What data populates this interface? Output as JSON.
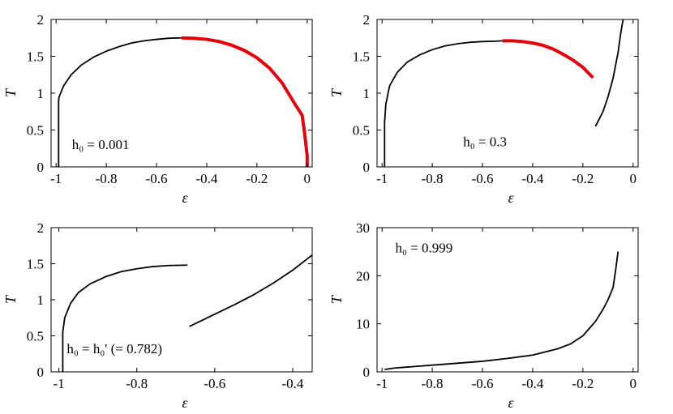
{
  "chart_data": [
    {
      "type": "line",
      "xlabel": "ε",
      "ylabel": "T",
      "xlim": [
        -1.02,
        0.02
      ],
      "ylim": [
        0,
        2
      ],
      "xticks": [
        -1,
        -0.8,
        -0.6,
        -0.4,
        -0.2,
        0
      ],
      "xtick_labels": [
        "-1",
        "-0.8",
        "-0.6",
        "-0.4",
        "-0.2",
        "0"
      ],
      "yticks": [
        0,
        0.5,
        1,
        1.5,
        2
      ],
      "ytick_labels": [
        "0",
        "0.5",
        "1",
        "1.5",
        "2"
      ],
      "annotation": "h₀ = 0.001",
      "series": [
        {
          "color": "#000000",
          "width": 1.8,
          "x": [
            -0.99,
            -0.99,
            -0.988,
            -0.97,
            -0.94,
            -0.9,
            -0.85,
            -0.8,
            -0.75,
            -0.7,
            -0.65,
            -0.6,
            -0.55,
            -0.5
          ],
          "y": [
            0.0,
            0.9,
            0.95,
            1.1,
            1.25,
            1.38,
            1.49,
            1.57,
            1.63,
            1.68,
            1.71,
            1.73,
            1.745,
            1.75
          ]
        },
        {
          "color": "#e8000b",
          "width": 4,
          "x": [
            -0.5,
            -0.45,
            -0.4,
            -0.35,
            -0.3,
            -0.25,
            -0.2,
            -0.15,
            -0.1,
            -0.05,
            -0.02,
            -0.01,
            0.0,
            0.0
          ],
          "y": [
            1.75,
            1.745,
            1.73,
            1.7,
            1.65,
            1.58,
            1.48,
            1.34,
            1.14,
            0.86,
            0.7,
            0.45,
            0.15,
            0.0
          ]
        }
      ]
    },
    {
      "type": "line",
      "xlabel": "ε",
      "ylabel": "T",
      "xlim": [
        -1.02,
        0.02
      ],
      "ylim": [
        0,
        2
      ],
      "xticks": [
        -1,
        -0.8,
        -0.6,
        -0.4,
        -0.2,
        0
      ],
      "xtick_labels": [
        "-1",
        "-0.8",
        "-0.6",
        "-0.4",
        "-0.2",
        "0"
      ],
      "yticks": [
        0,
        0.5,
        1,
        1.5,
        2
      ],
      "ytick_labels": [
        "0",
        "0.5",
        "1",
        "1.5",
        "2"
      ],
      "annotation": "h₀ = 0.3",
      "series": [
        {
          "color": "#000000",
          "width": 1.8,
          "x": [
            -0.99,
            -0.99,
            -0.985,
            -0.97,
            -0.94,
            -0.9,
            -0.85,
            -0.8,
            -0.75,
            -0.7,
            -0.65,
            -0.6,
            -0.55,
            -0.52
          ],
          "y": [
            0.0,
            0.6,
            0.85,
            1.1,
            1.28,
            1.42,
            1.52,
            1.59,
            1.64,
            1.67,
            1.69,
            1.7,
            1.705,
            1.71
          ]
        },
        {
          "color": "#e8000b",
          "width": 4,
          "x": [
            -0.52,
            -0.48,
            -0.44,
            -0.4,
            -0.36,
            -0.32,
            -0.28,
            -0.24,
            -0.2,
            -0.16
          ],
          "y": [
            1.71,
            1.71,
            1.7,
            1.68,
            1.65,
            1.6,
            1.53,
            1.45,
            1.35,
            1.21
          ]
        },
        {
          "color": "#000000",
          "width": 1.8,
          "x": [
            -0.15,
            -0.12,
            -0.1,
            -0.08,
            -0.06,
            -0.05,
            -0.04
          ],
          "y": [
            0.55,
            0.75,
            0.95,
            1.2,
            1.55,
            1.8,
            2.0
          ]
        }
      ]
    },
    {
      "type": "line",
      "xlabel": "ε",
      "ylabel": "T",
      "xlim": [
        -1.02,
        -0.35
      ],
      "ylim": [
        0,
        2
      ],
      "xticks": [
        -1,
        -0.8,
        -0.6,
        -0.4
      ],
      "xtick_labels": [
        "-1",
        "-0.8",
        "-0.6",
        "-0.4"
      ],
      "yticks": [
        0,
        0.5,
        1,
        1.5,
        2
      ],
      "ytick_labels": [
        "0",
        "0.5",
        "1",
        "1.5",
        "2"
      ],
      "annotation": "h₀ = h₀' (= 0.782)",
      "series": [
        {
          "color": "#000000",
          "width": 1.8,
          "x": [
            -0.99,
            -0.99,
            -0.985,
            -0.97,
            -0.95,
            -0.92,
            -0.88,
            -0.84,
            -0.8,
            -0.76,
            -0.72,
            -0.67
          ],
          "y": [
            0.0,
            0.55,
            0.75,
            0.95,
            1.1,
            1.22,
            1.32,
            1.39,
            1.43,
            1.46,
            1.475,
            1.48
          ]
        },
        {
          "color": "#000000",
          "width": 1.8,
          "x": [
            -0.665,
            -0.6,
            -0.55,
            -0.5,
            -0.45,
            -0.4,
            -0.35
          ],
          "y": [
            0.63,
            0.8,
            0.93,
            1.07,
            1.23,
            1.41,
            1.62
          ]
        }
      ]
    },
    {
      "type": "line",
      "xlabel": "ε",
      "ylabel": "T",
      "xlim": [
        -1.02,
        0.02
      ],
      "ylim": [
        0,
        30
      ],
      "xticks": [
        -1,
        -0.8,
        -0.6,
        -0.4,
        -0.2,
        0
      ],
      "xtick_labels": [
        "-1",
        "-0.8",
        "-0.6",
        "-0.4",
        "-0.2",
        "0"
      ],
      "yticks": [
        0,
        10,
        20,
        30
      ],
      "ytick_labels": [
        "0",
        "10",
        "20",
        "30"
      ],
      "annotation": "h₀ = 0.999",
      "series": [
        {
          "color": "#000000",
          "width": 1.8,
          "x": [
            -0.99,
            -0.95,
            -0.9,
            -0.8,
            -0.7,
            -0.6,
            -0.5,
            -0.4,
            -0.3,
            -0.25,
            -0.2,
            -0.15,
            -0.12,
            -0.1,
            -0.08,
            -0.07,
            -0.06
          ],
          "y": [
            0.5,
            0.8,
            1.0,
            1.4,
            1.8,
            2.2,
            2.8,
            3.5,
            4.8,
            5.8,
            7.5,
            10.5,
            13.0,
            15.0,
            17.5,
            21.0,
            25.0
          ]
        }
      ]
    }
  ]
}
